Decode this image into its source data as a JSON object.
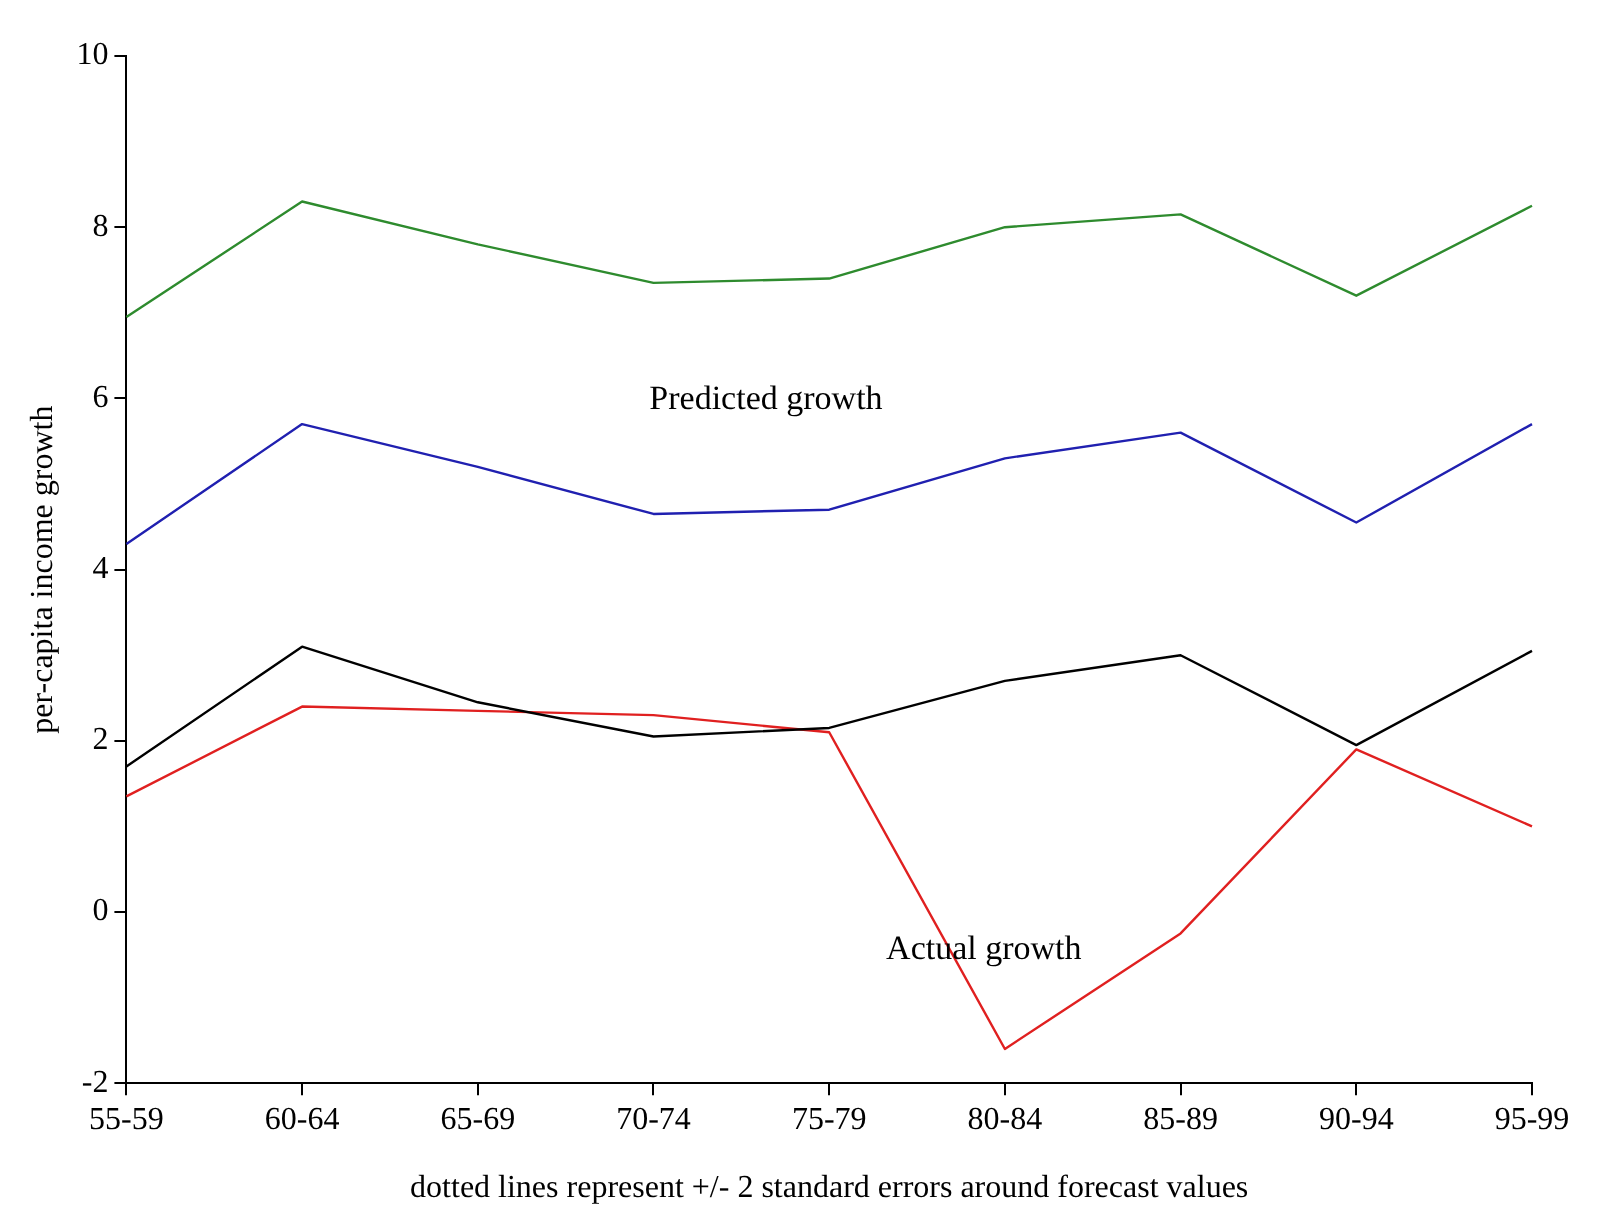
{
  "chart_data": {
    "type": "line",
    "xlabel": "dotted lines represent +/- 2 standard errors around forecast values",
    "ylabel": "per-capita income growth",
    "categories": [
      "55-59",
      "60-64",
      "65-69",
      "70-74",
      "75-79",
      "80-84",
      "85-89",
      "90-94",
      "95-99"
    ],
    "series": [
      {
        "color": "#2e8b2e",
        "values": [
          6.95,
          8.3,
          7.8,
          7.35,
          7.4,
          8.0,
          8.15,
          7.2,
          8.25
        ]
      },
      {
        "color": "#2020b0",
        "values": [
          4.3,
          5.7,
          5.2,
          4.65,
          4.7,
          5.3,
          5.6,
          4.55,
          5.7
        ]
      },
      {
        "color": "#000000",
        "values": [
          1.7,
          3.1,
          2.45,
          2.05,
          2.15,
          2.7,
          3.0,
          1.95,
          3.05
        ]
      },
      {
        "color": "#e02020",
        "values": [
          1.35,
          2.4,
          2.35,
          2.3,
          2.1,
          -1.6,
          -0.25,
          1.9,
          1.0
        ]
      }
    ],
    "annotations": [
      "Predicted growth",
      "Actual growth"
    ],
    "ylim": [
      -2,
      10
    ],
    "yticks": [
      -2,
      0,
      2,
      4,
      6,
      8,
      10
    ],
    "grid": false,
    "legend": false,
    "marker": "none",
    "line_style": "solid"
  }
}
